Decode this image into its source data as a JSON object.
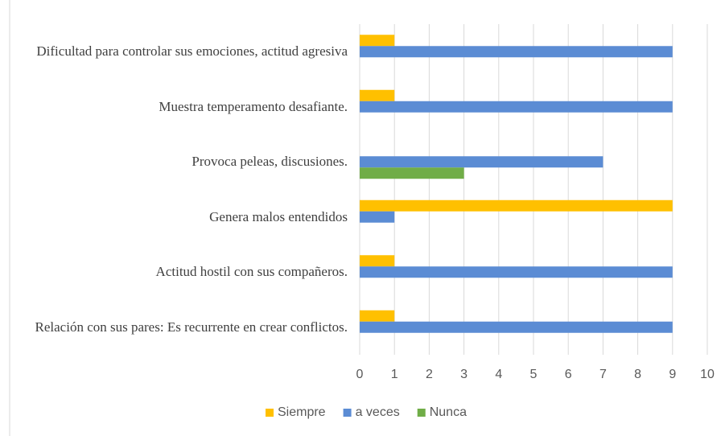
{
  "chart_data": {
    "type": "bar",
    "orientation": "horizontal",
    "categories": [
      "Dificultad para controlar sus emociones, actitud agresiva",
      "Muestra temperamento desafiante.",
      "Provoca peleas, discusiones.",
      "Genera malos entendidos",
      "Actitud hostil con sus compañeros.",
      "Relación con sus pares: Es recurrente en crear conflictos."
    ],
    "series": [
      {
        "name": "Siempre",
        "color": "#ffc000",
        "values": [
          1,
          1,
          0,
          9,
          1,
          1
        ]
      },
      {
        "name": "a veces",
        "color": "#5b8cd4",
        "values": [
          9,
          9,
          7,
          1,
          9,
          9
        ]
      },
      {
        "name": "Nunca",
        "color": "#70ad47",
        "values": [
          0,
          0,
          3,
          0,
          0,
          0
        ]
      }
    ],
    "xlim": [
      0,
      10
    ],
    "xticks": [
      0,
      1,
      2,
      3,
      4,
      5,
      6,
      7,
      8,
      9,
      10
    ],
    "grid": true,
    "legend": "bottom"
  }
}
